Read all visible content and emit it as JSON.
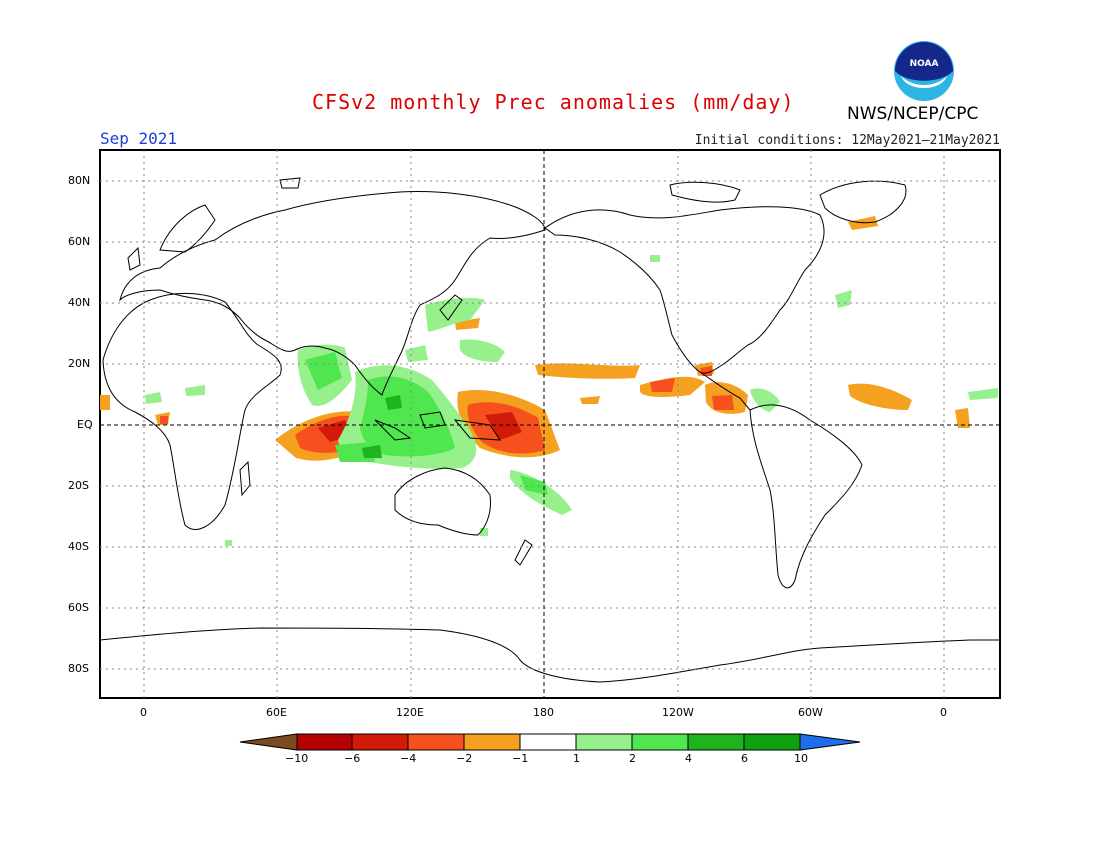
{
  "header": {
    "title": "CFSv2 monthly Prec anomalies (mm/day)",
    "month": "Sep 2021",
    "initial_conditions": "Initial conditions: 12May2021–21May2021",
    "agency": "NWS/NCEP/CPC",
    "logo_text": "NOAA"
  },
  "axes": {
    "lat_labels": [
      "80N",
      "60N",
      "40N",
      "20N",
      "EQ",
      "20S",
      "40S",
      "60S",
      "80S"
    ],
    "lon_labels": [
      "0",
      "60E",
      "120E",
      "180",
      "120W",
      "60W",
      "0"
    ]
  },
  "colorbar": {
    "labels": [
      "−10",
      "−6",
      "−4",
      "−2",
      "−1",
      "1",
      "2",
      "4",
      "6",
      "10"
    ],
    "colors": [
      "#7b4a1e",
      "#b40000",
      "#d21a08",
      "#f5501e",
      "#f5a01e",
      "#ffffff",
      "#96f08c",
      "#50e650",
      "#1eb41e",
      "#0fa00f",
      "#1e6eeb"
    ]
  },
  "colors": {
    "title": "#dd0000",
    "month": "#1e3cdc"
  }
}
